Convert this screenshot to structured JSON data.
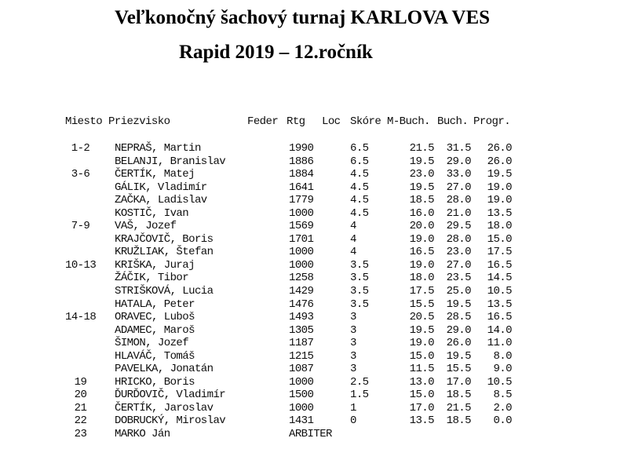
{
  "title": "Veľkonočný šachový turnaj KARLOVA VES",
  "subtitle": "Rapid 2019 – 12.ročník",
  "table": {
    "headers": {
      "miesto": "Miesto",
      "priezvisko": "Priezvisko",
      "feder": "Feder",
      "rtg": "Rtg",
      "loc": "Loc",
      "skore": "Skóre",
      "mbuch": "M-Buch.",
      "buch": "Buch.",
      "progr": "Progr."
    },
    "rows": [
      {
        "miesto": "1-2",
        "priezvisko": "NEPRAŠ, Martin",
        "rtg": "1990",
        "skore": "6.5",
        "mbuch": "21.5",
        "buch": "31.5",
        "progr": "26.0"
      },
      {
        "miesto": "",
        "priezvisko": "BELANJI, Branislav",
        "rtg": "1886",
        "skore": "6.5",
        "mbuch": "19.5",
        "buch": "29.0",
        "progr": "26.0"
      },
      {
        "miesto": "3-6",
        "priezvisko": "ČERTÍK, Matej",
        "rtg": "1884",
        "skore": "4.5",
        "mbuch": "23.0",
        "buch": "33.0",
        "progr": "19.5"
      },
      {
        "miesto": "",
        "priezvisko": "GÁLIK, Vladimír",
        "rtg": "1641",
        "skore": "4.5",
        "mbuch": "19.5",
        "buch": "27.0",
        "progr": "19.0"
      },
      {
        "miesto": "",
        "priezvisko": "ZAČKA, Ladislav",
        "rtg": "1779",
        "skore": "4.5",
        "mbuch": "18.5",
        "buch": "28.0",
        "progr": "19.0"
      },
      {
        "miesto": "",
        "priezvisko": "KOSTIČ, Ivan",
        "rtg": "1000",
        "skore": "4.5",
        "mbuch": "16.0",
        "buch": "21.0",
        "progr": "13.5"
      },
      {
        "miesto": "7-9",
        "priezvisko": "VAŠ, Jozef",
        "rtg": "1569",
        "skore": "4",
        "mbuch": "20.0",
        "buch": "29.5",
        "progr": "18.0"
      },
      {
        "miesto": "",
        "priezvisko": "KRAJČOVIČ, Boris",
        "rtg": "1701",
        "skore": "4",
        "mbuch": "19.0",
        "buch": "28.0",
        "progr": "15.0"
      },
      {
        "miesto": "",
        "priezvisko": "KRUŽLIAK, Štefan",
        "rtg": "1000",
        "skore": "4",
        "mbuch": "16.5",
        "buch": "23.0",
        "progr": "17.5"
      },
      {
        "miesto": "10-13",
        "priezvisko": "KRIŠKA, Juraj",
        "rtg": "1000",
        "skore": "3.5",
        "mbuch": "19.0",
        "buch": "27.0",
        "progr": "16.5"
      },
      {
        "miesto": "",
        "priezvisko": "ŽÁČIK, Tibor",
        "rtg": "1258",
        "skore": "3.5",
        "mbuch": "18.0",
        "buch": "23.5",
        "progr": "14.5"
      },
      {
        "miesto": "",
        "priezvisko": "STRIŠKOVÁ, Lucia",
        "rtg": "1429",
        "skore": "3.5",
        "mbuch": "17.5",
        "buch": "25.0",
        "progr": "10.5"
      },
      {
        "miesto": "",
        "priezvisko": "HATALA, Peter",
        "rtg": "1476",
        "skore": "3.5",
        "mbuch": "15.5",
        "buch": "19.5",
        "progr": "13.5"
      },
      {
        "miesto": "14-18",
        "priezvisko": "ORAVEC, Luboš",
        "rtg": "1493",
        "skore": "3",
        "mbuch": "20.5",
        "buch": "28.5",
        "progr": "16.5"
      },
      {
        "miesto": "",
        "priezvisko": "ADAMEC, Maroš",
        "rtg": "1305",
        "skore": "3",
        "mbuch": "19.5",
        "buch": "29.0",
        "progr": "14.0"
      },
      {
        "miesto": "",
        "priezvisko": "ŠIMON, Jozef",
        "rtg": "1187",
        "skore": "3",
        "mbuch": "19.0",
        "buch": "26.0",
        "progr": "11.0"
      },
      {
        "miesto": "",
        "priezvisko": "HLAVÁČ, Tomáš",
        "rtg": "1215",
        "skore": "3",
        "mbuch": "15.0",
        "buch": "19.5",
        "progr": "8.0"
      },
      {
        "miesto": "",
        "priezvisko": "PAVELKA, Jonatán",
        "rtg": "1087",
        "skore": "3",
        "mbuch": "11.5",
        "buch": "15.5",
        "progr": "9.0"
      },
      {
        "miesto": "19",
        "priezvisko": "HRICKO, Boris",
        "rtg": "1000",
        "skore": "2.5",
        "mbuch": "13.0",
        "buch": "17.0",
        "progr": "10.5"
      },
      {
        "miesto": "20",
        "priezvisko": "ĎURĎOVIČ, Vladimír",
        "rtg": "1500",
        "skore": "1.5",
        "mbuch": "15.0",
        "buch": "18.5",
        "progr": "8.5"
      },
      {
        "miesto": "21",
        "priezvisko": "ČERTÍK, Jaroslav",
        "rtg": "1000",
        "skore": "1",
        "mbuch": "17.0",
        "buch": "21.5",
        "progr": "2.0"
      },
      {
        "miesto": "22",
        "priezvisko": "DOBRUCKÝ, Miroslav",
        "rtg": "1431",
        "skore": "0",
        "mbuch": "13.5",
        "buch": "18.5",
        "progr": "0.0"
      },
      {
        "miesto": "23",
        "priezvisko": "MARKO Ján",
        "rtg": "ARBITER",
        "skore": "",
        "mbuch": "",
        "buch": "",
        "progr": ""
      }
    ]
  }
}
